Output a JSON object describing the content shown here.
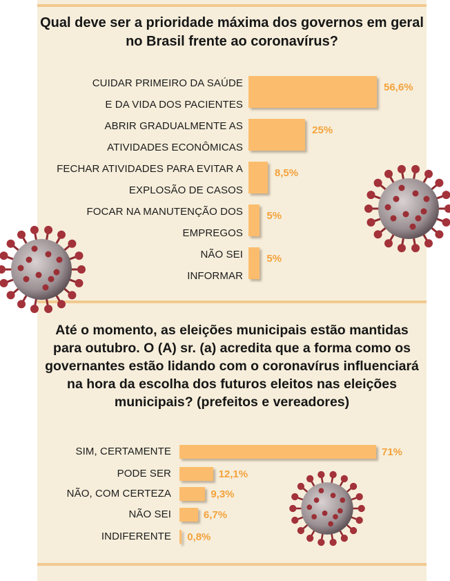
{
  "chart_data": [
    {
      "type": "bar",
      "orientation": "horizontal",
      "title": "Qual deve ser a prioridade máxima dos governos em geral no Brasil frente ao coronavírus?",
      "title_lines": [
        "Qual deve ser a prioridade máxima dos governos em geral",
        "no Brasil frente ao coronavírus?"
      ],
      "categories": [
        [
          "CUIDAR PRIMEIRO DA SAÚDE",
          "E DA VIDA DOS PACIENTES"
        ],
        [
          "ABRIR GRADUALMENTE AS",
          "ATIVIDADES ECONÔMICAS"
        ],
        [
          "FECHAR ATIVIDADES PARA EVITAR A",
          "EXPLOSÃO DE CASOS"
        ],
        [
          "FOCAR NA MANUTENÇÃO DOS",
          "EMPREGOS"
        ],
        [
          "NÃO SEI",
          "INFORMAR"
        ]
      ],
      "values": [
        56.6,
        25,
        8.5,
        5,
        5
      ],
      "value_labels": [
        "56,6%",
        "25%",
        "8,5%",
        "5%",
        "5%"
      ],
      "bar_color": "#fbbd6d",
      "label_color": "#f4a23c"
    },
    {
      "type": "bar",
      "orientation": "horizontal",
      "title": "Até o momento, as eleições municipais estão mantidas para outubro. O (A) sr. (a) acredita que a forma como os governantes estão lidando com o coronavírus influenciará na hora da escolha dos futuros eleitos nas eleições municipais? (prefeitos e vereadores)",
      "title_lines": [
        "Até o momento, as eleições municipais estão mantidas",
        "para outubro. O (A) sr. (a) acredita que a forma como os",
        "governantes estão lidando com o coronavírus influenciará",
        "na hora da escolha dos futuros eleitos nas eleições",
        "municipais? (prefeitos e vereadores)"
      ],
      "categories": [
        "SIM, CERTAMENTE",
        "PODE SER",
        "NÃO, COM CERTEZA",
        "NÃO SEI",
        "INDIFERENTE"
      ],
      "values": [
        71,
        12.1,
        9.3,
        6.7,
        0.8
      ],
      "value_labels": [
        "71%",
        "12,1%",
        "9,3%",
        "6,7%",
        "0,8%"
      ],
      "bar_color": "#fbbd6d",
      "label_color": "#f4a23c"
    }
  ],
  "colors": {
    "panel_background": "#f6eedb",
    "separator": "#f2c98f",
    "virus": "#9a2a30"
  },
  "decorations": [
    "coronavirus-illustration",
    "coronavirus-illustration",
    "coronavirus-illustration"
  ]
}
